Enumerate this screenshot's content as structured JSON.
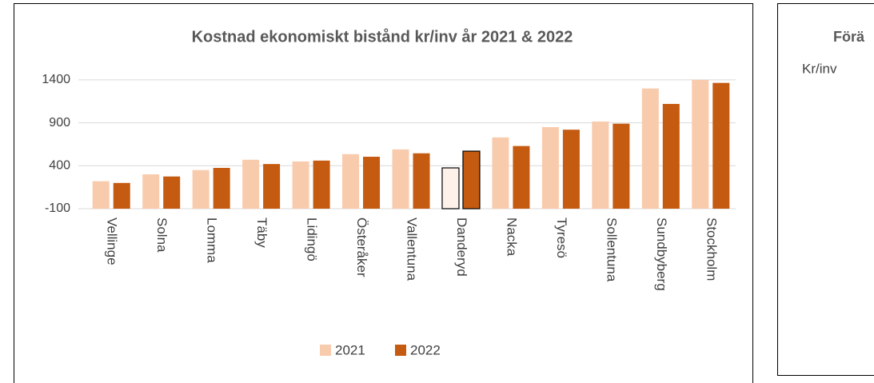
{
  "chart_data": [
    {
      "type": "bar",
      "title": "Kostnad ekonomiskt bistånd kr/inv år 2021 & 2022",
      "categories": [
        "Vellinge",
        "Solna",
        "Lomma",
        "Täby",
        "Lidingö",
        "Österåker",
        "Vallentuna",
        "Danderyd",
        "Nacka",
        "Tyresö",
        "Sollentuna",
        "Sundbyberg",
        "Stockholm"
      ],
      "series": [
        {
          "name": "2021",
          "color": "#f8cbad",
          "values": [
            220,
            300,
            350,
            470,
            450,
            535,
            590,
            375,
            730,
            850,
            915,
            1300,
            1400
          ]
        },
        {
          "name": "2022",
          "color": "#c55a11",
          "values": [
            200,
            275,
            375,
            420,
            460,
            505,
            545,
            570,
            630,
            820,
            890,
            1120,
            1365
          ]
        }
      ],
      "ylim": [
        -100,
        1450
      ],
      "yticks": [
        -100,
        400,
        900,
        1400
      ],
      "grid": true,
      "legend": "bottom",
      "highlight_index": 7
    },
    {
      "type": "bar",
      "title": "Förä",
      "ylabel": "Kr/inv"
    }
  ]
}
